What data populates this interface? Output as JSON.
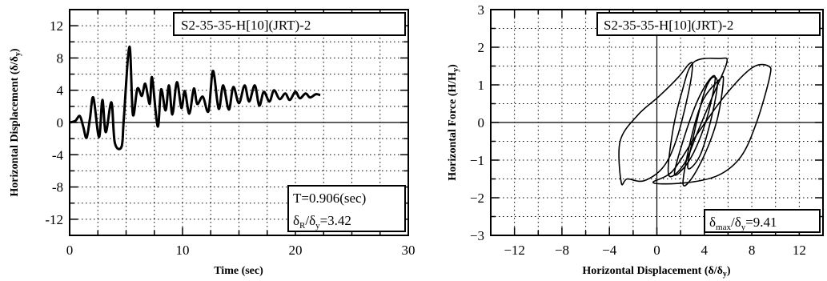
{
  "chart_data": [
    {
      "type": "line",
      "title": "S2-35-35-H[10](JRT)-2",
      "xlabel": "Time (sec)",
      "ylabel": "Horizontal Displacement (δ/δy)",
      "xlim": [
        0,
        30
      ],
      "ylim": [
        -14,
        14
      ],
      "xticks": [
        "0",
        "10",
        "20",
        "30"
      ],
      "yticks": [
        "12",
        "8",
        "4",
        "0",
        "-4",
        "-8",
        "-12"
      ],
      "grid": true,
      "annotations": [
        "T=0.906(sec)",
        "δR/δy=3.42"
      ],
      "series": [
        {
          "x": [
            0.0,
            0.5,
            0.9,
            1.2,
            1.5,
            1.8,
            2.1,
            2.6,
            2.9,
            3.2,
            3.7,
            4.0,
            4.6,
            4.8,
            5.3,
            5.6,
            6.0,
            6.4,
            6.7,
            7.1,
            7.3,
            7.8,
            8.1,
            8.5,
            8.8,
            9.1,
            9.5,
            9.9,
            10.2,
            10.6,
            11.0,
            11.3,
            11.8,
            12.3,
            12.7,
            13.2,
            13.6,
            14.1,
            14.5,
            15.0,
            15.5,
            15.9,
            16.4,
            16.8,
            17.2,
            17.7,
            18.1,
            18.6,
            19.1,
            19.5,
            20.0,
            20.4,
            20.9,
            21.3,
            21.8,
            22.2
          ],
          "y": [
            0.0,
            0.2,
            0.8,
            -0.5,
            -1.9,
            0.5,
            3.1,
            -1.8,
            2.8,
            -1.2,
            2.5,
            -2.5,
            -3.0,
            0.5,
            9.4,
            1.0,
            4.2,
            3.3,
            4.8,
            2.3,
            5.6,
            -0.5,
            4.1,
            1.5,
            4.6,
            1.0,
            5.0,
            1.8,
            3.9,
            1.1,
            4.2,
            2.3,
            3.2,
            1.4,
            6.4,
            1.7,
            4.6,
            1.6,
            4.4,
            2.4,
            4.6,
            2.6,
            4.6,
            2.1,
            3.8,
            2.6,
            4.0,
            2.9,
            3.6,
            2.8,
            3.8,
            3.0,
            3.6,
            3.1,
            3.5,
            3.4
          ]
        }
      ]
    },
    {
      "type": "line",
      "title": "S2-35-35-H[10](JRT)-2",
      "xlabel": "Horizontal Displacement (δ/δy)",
      "ylabel": "Horizontal Force (H/Hy)",
      "xlim": [
        -14,
        14
      ],
      "ylim": [
        -3,
        3
      ],
      "xticks": [
        "-12",
        "-8",
        "-4",
        "0",
        "4",
        "8",
        "12"
      ],
      "yticks": [
        "3",
        "2",
        "1",
        "0",
        "-1",
        "-2",
        "-3"
      ],
      "grid": true,
      "annotations": [
        "δmax/δy=9.41"
      ],
      "loops": [
        [
          [
            -2.5,
            -1.5
          ],
          [
            -3.0,
            -1.6
          ],
          [
            -3.1,
            -0.5
          ],
          [
            -1.6,
            0.2
          ],
          [
            0.2,
            0.7
          ],
          [
            1.8,
            1.2
          ],
          [
            2.7,
            1.55
          ],
          [
            3.0,
            1.5
          ],
          [
            2.6,
            0.7
          ],
          [
            1.6,
            -0.5
          ],
          [
            0.5,
            -1.2
          ],
          [
            -1.1,
            -1.55
          ],
          [
            -2.5,
            -1.5
          ]
        ],
        [
          [
            -0.3,
            -1.6
          ],
          [
            1.3,
            -1.3
          ],
          [
            3.2,
            -0.4
          ],
          [
            5.7,
            0.7
          ],
          [
            8.0,
            1.45
          ],
          [
            9.4,
            1.5
          ],
          [
            9.5,
            1.2
          ],
          [
            8.4,
            0.0
          ],
          [
            7.1,
            -0.9
          ],
          [
            5.2,
            -1.4
          ],
          [
            2.5,
            -1.6
          ],
          [
            -0.3,
            -1.6
          ]
        ],
        [
          [
            1.0,
            -1.4
          ],
          [
            1.3,
            -0.3
          ],
          [
            2.1,
            0.8
          ],
          [
            3.1,
            1.6
          ],
          [
            5.3,
            1.7
          ],
          [
            5.9,
            1.6
          ],
          [
            4.7,
            0.7
          ],
          [
            3.5,
            -0.2
          ],
          [
            2.3,
            -1.1
          ],
          [
            1.0,
            -1.4
          ]
        ],
        [
          [
            2.2,
            -1.6
          ],
          [
            2.9,
            -0.4
          ],
          [
            3.9,
            0.6
          ],
          [
            5.3,
            1.15
          ],
          [
            5.6,
            1.1
          ],
          [
            5.1,
            0.1
          ],
          [
            4.1,
            -0.8
          ],
          [
            2.9,
            -1.5
          ],
          [
            2.2,
            -1.6
          ]
        ],
        [
          [
            1.5,
            -1.3
          ],
          [
            2.5,
            -0.2
          ],
          [
            3.6,
            0.7
          ],
          [
            4.6,
            1.2
          ],
          [
            4.9,
            1.1
          ],
          [
            4.2,
            0.1
          ],
          [
            3.1,
            -0.8
          ],
          [
            2.0,
            -1.3
          ],
          [
            1.5,
            -1.3
          ]
        ],
        [
          [
            2.6,
            -1.2
          ],
          [
            3.2,
            -0.2
          ],
          [
            4.0,
            0.8
          ],
          [
            4.7,
            1.2
          ],
          [
            5.1,
            1.0
          ],
          [
            4.5,
            0.0
          ],
          [
            3.6,
            -0.9
          ],
          [
            2.6,
            -1.2
          ]
        ]
      ]
    }
  ]
}
